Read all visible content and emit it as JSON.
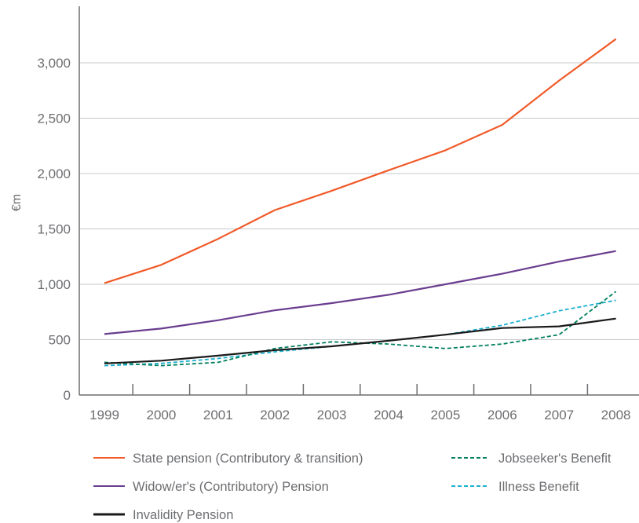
{
  "chart_data": {
    "type": "line",
    "title": "",
    "xlabel": "",
    "ylabel": "€m",
    "x": [
      "1999",
      "2000",
      "2001",
      "2002",
      "2003",
      "2004",
      "2005",
      "2006",
      "2007",
      "2008"
    ],
    "ylim": [
      0,
      3500
    ],
    "yticks": [
      0,
      500,
      1000,
      1500,
      2000,
      2500,
      3000
    ],
    "ytick_labels": [
      "0",
      "500",
      "1,000",
      "1,500",
      "2,000",
      "2,500",
      "3,000"
    ],
    "grid": true,
    "legend_position": "bottom",
    "series": [
      {
        "name": "State pension (Contributory & transition)",
        "color": "#f15a29",
        "dash": "solid",
        "values": [
          1010,
          1175,
          1410,
          1670,
          1845,
          2030,
          2210,
          2440,
          2840,
          3215
        ]
      },
      {
        "name": "Widow/er's (Contributory) Pension",
        "color": "#6a3d8f",
        "dash": "solid",
        "values": [
          550,
          600,
          675,
          765,
          830,
          905,
          1000,
          1095,
          1205,
          1300
        ]
      },
      {
        "name": "Invalidity Pension",
        "color": "#1a1a1a",
        "dash": "solid",
        "values": [
          285,
          310,
          355,
          405,
          440,
          490,
          545,
          605,
          620,
          690
        ]
      },
      {
        "name": "Jobseeker's Benefit",
        "color": "#00805f",
        "dash": "dashed",
        "values": [
          295,
          265,
          295,
          420,
          480,
          460,
          420,
          460,
          545,
          935
        ]
      },
      {
        "name": "Illness Benefit",
        "color": "#1cb0cf",
        "dash": "dashed",
        "values": [
          265,
          285,
          330,
          390,
          440,
          490,
          545,
          630,
          760,
          855
        ]
      }
    ]
  }
}
